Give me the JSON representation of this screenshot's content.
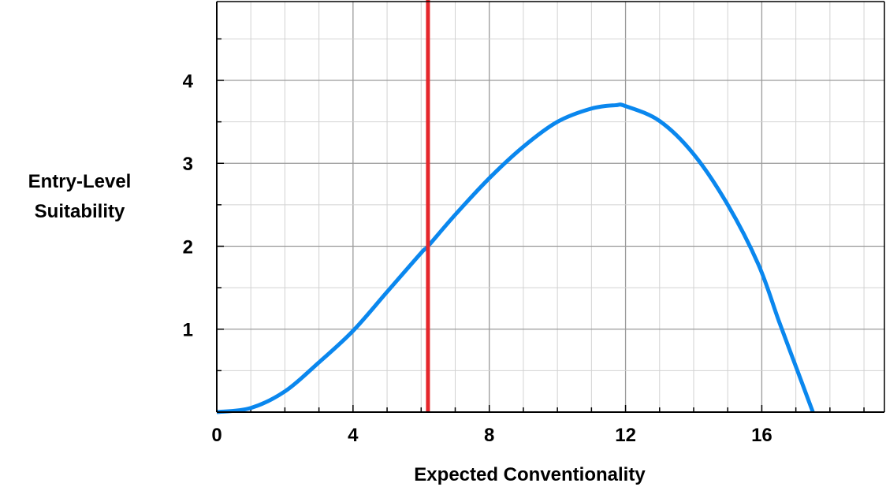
{
  "chart_data": {
    "type": "line",
    "title": "",
    "xlabel": "Expected Conventionality",
    "ylabel_lines": [
      "Entry-Level",
      "Suitability"
    ],
    "xlim": [
      0,
      19.6
    ],
    "ylim": [
      0,
      4.95
    ],
    "x_ticks": [
      0,
      4,
      8,
      12,
      16
    ],
    "y_ticks": [
      1,
      2,
      3,
      4
    ],
    "x_minor_step": 1,
    "y_minor_step": 0.5,
    "grid": true,
    "series": [
      {
        "color": "#0a87ee",
        "x": [
          0,
          1,
          2,
          3,
          4,
          5,
          6,
          6.2,
          7,
          8,
          9,
          10,
          11,
          11.7,
          12,
          13,
          14,
          15,
          15.9,
          16.5,
          17,
          17.5
        ],
        "y": [
          0,
          0.05,
          0.25,
          0.6,
          0.98,
          1.45,
          1.92,
          2.0,
          2.38,
          2.82,
          3.2,
          3.5,
          3.66,
          3.7,
          3.69,
          3.51,
          3.11,
          2.5,
          1.78,
          1.1,
          0.55,
          0
        ]
      }
    ],
    "marker_line": {
      "x": 6.2,
      "color": "#e5262b"
    }
  }
}
